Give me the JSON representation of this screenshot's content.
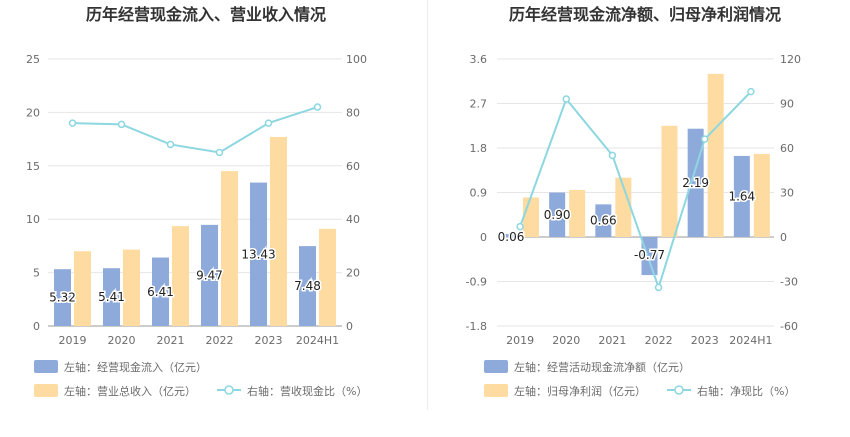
{
  "colors": {
    "bar1": "#8eaadb",
    "bar1_stroke": "#7f9fd6",
    "bar2": "#fedba0",
    "line": "#8dd7e1",
    "axis_text": "#6b6b6b",
    "grid": "#e6e6e6",
    "title": "#333333",
    "label": "#222222"
  },
  "chart_data": [
    {
      "type": "bar",
      "title": "历年经营现金流入、营业收入情况",
      "categories": [
        "2019",
        "2020",
        "2021",
        "2022",
        "2023",
        "2024H1"
      ],
      "left_axis": {
        "min": 0,
        "max": 25,
        "ticks": [
          "0",
          "5",
          "10",
          "15",
          "20",
          "25"
        ]
      },
      "right_axis": {
        "min": 0,
        "max": 100,
        "ticks": [
          "0",
          "20",
          "40",
          "60",
          "80",
          "100"
        ]
      },
      "series": [
        {
          "name": "左轴：经营现金流入（亿元）",
          "type": "bar",
          "axis": "left",
          "values": [
            5.32,
            5.41,
            6.41,
            9.47,
            13.43,
            7.48
          ],
          "labels": [
            "5.32",
            "5.41",
            "6.41",
            "9.47",
            "13.43",
            "7.48"
          ]
        },
        {
          "name": "左轴：营业总收入（亿元）",
          "type": "bar",
          "axis": "left",
          "values": [
            7.0,
            7.15,
            9.35,
            14.5,
            17.7,
            9.1
          ]
        },
        {
          "name": "右轴：营收现金比（%）",
          "type": "line",
          "axis": "right",
          "values": [
            76,
            75.5,
            68,
            65,
            76,
            82
          ]
        }
      ]
    },
    {
      "type": "bar",
      "title": "历年经营现金流净额、归母净利润情况",
      "categories": [
        "2019",
        "2020",
        "2021",
        "2022",
        "2023",
        "2024H1"
      ],
      "left_axis": {
        "min": -1.8,
        "max": 3.6,
        "ticks": [
          "-1.8",
          "-0.9",
          "0",
          "0.9",
          "1.8",
          "2.7",
          "3.6"
        ]
      },
      "right_axis": {
        "min": -60,
        "max": 120,
        "ticks": [
          "-60",
          "-30",
          "0",
          "30",
          "60",
          "90",
          "120"
        ]
      },
      "series": [
        {
          "name": "左轴：经营活动现金流净额（亿元）",
          "type": "bar",
          "axis": "left",
          "values": [
            0.06,
            0.9,
            0.66,
            -0.77,
            2.19,
            1.64
          ],
          "labels": [
            "0.06",
            "0.90",
            "0.66",
            "-0.77",
            "2.19",
            "1.64"
          ]
        },
        {
          "name": "左轴：归母净利润（亿元）",
          "type": "bar",
          "axis": "left",
          "values": [
            0.8,
            0.95,
            1.2,
            2.25,
            3.3,
            1.68
          ]
        },
        {
          "name": "右轴：净现比（%）",
          "type": "line",
          "axis": "right",
          "values": [
            7,
            93,
            55,
            -34,
            66,
            98
          ]
        }
      ]
    }
  ]
}
